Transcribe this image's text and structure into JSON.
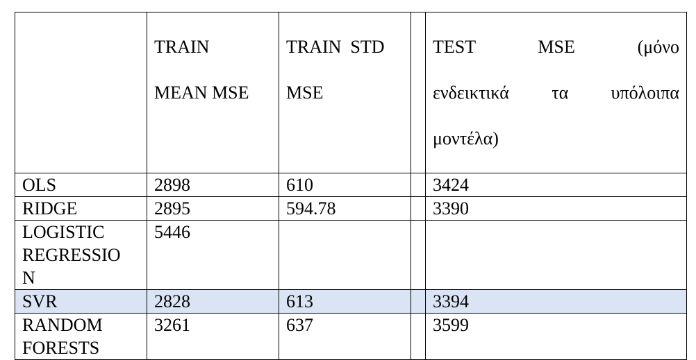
{
  "table": {
    "headers": {
      "model": "",
      "train_mean_mse": [
        "TRAIN",
        "MEAN MSE"
      ],
      "train_std_mse": [
        "TRAIN  STD",
        "MSE"
      ],
      "test_mse": [
        "TEST       MSE       (μόνο",
        "ενδεικτικά    τα    υπόλοιπα",
        "μοντέλα)"
      ]
    },
    "rows": [
      {
        "model": "OLS",
        "train_mean_mse": "2898",
        "train_std_mse": "610",
        "test_mse": "3424"
      },
      {
        "model": "RIDGE",
        "train_mean_mse": "2895",
        "train_std_mse": "594.78",
        "test_mse": "3390"
      },
      {
        "model": "LOGISTIC\nREGRESSIO\nN",
        "train_mean_mse": "5446",
        "train_std_mse": "",
        "test_mse": ""
      },
      {
        "model": "SVR",
        "train_mean_mse": "2828",
        "train_std_mse": "613",
        "test_mse": "3394",
        "highlight": "#dbe4f4"
      },
      {
        "model": "RANDOM\nFORESTS",
        "train_mean_mse": "3261",
        "train_std_mse": "637",
        "test_mse": "3599"
      }
    ]
  }
}
